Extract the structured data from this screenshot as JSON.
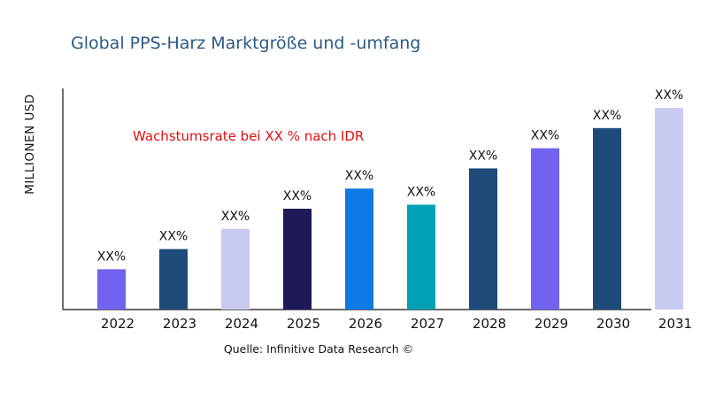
{
  "chart_data": {
    "type": "bar",
    "title": "Global PPS-Harz Marktgröße und -umfang",
    "xlabel": "",
    "ylabel": "MILLIONEN USD",
    "annotation": "Wachstumsrate bei XX % nach IDR",
    "source": "Quelle: Infinitive Data Research ©",
    "categories": [
      "2022",
      "2023",
      "2024",
      "2025",
      "2026",
      "2027",
      "2028",
      "2029",
      "2030",
      "2031"
    ],
    "values": [
      20,
      30,
      40,
      50,
      60,
      52,
      70,
      80,
      90,
      100
    ],
    "data_labels": [
      "XX%",
      "XX%",
      "XX%",
      "XX%",
      "XX%",
      "XX%",
      "XX%",
      "XX%",
      "XX%",
      "XX%"
    ],
    "colors": [
      "#7163f0",
      "#1f4b7a",
      "#c9caf0",
      "#1e1a58",
      "#0e7ae6",
      "#00a0b6",
      "#1f4b7a",
      "#7163f0",
      "#1f4b7a",
      "#c9caf0"
    ],
    "ylim": [
      0,
      110
    ],
    "grid": false,
    "legend": "none"
  }
}
